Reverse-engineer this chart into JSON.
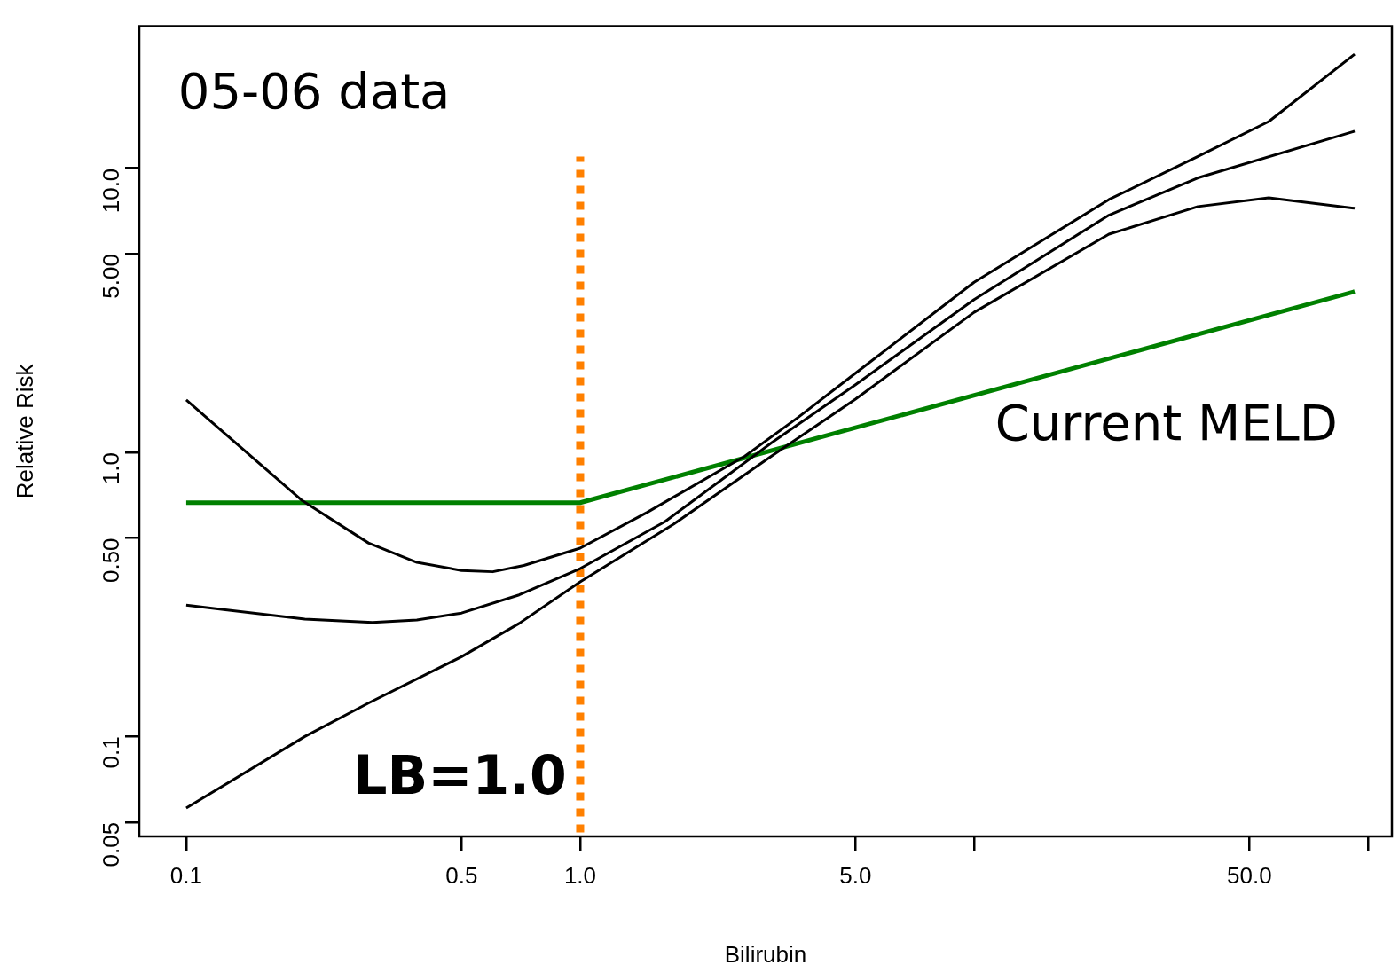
{
  "chart_data": {
    "type": "line",
    "xlabel": "Bilirubin",
    "ylabel": "Relative Risk",
    "log": "xy",
    "grid": false,
    "legend": false,
    "marker": "none",
    "xlim": [
      0.076,
      115
    ],
    "ylim": [
      0.0445,
      31.6
    ],
    "xticks": [
      0.1,
      0.5,
      {
        "value": 1,
        "label": "1.0"
      },
      {
        "value": 5,
        "label": "5.0"
      },
      {
        "value": 10,
        "label": null
      },
      {
        "value": 50,
        "label": "50.0"
      },
      {
        "value": 100,
        "label": null
      }
    ],
    "yticks": [
      0.05,
      0.1,
      {
        "value": 0.5,
        "label": "0.50"
      },
      {
        "value": 1,
        "label": "1.0"
      },
      {
        "value": 5,
        "label": "5.00"
      },
      {
        "value": 10,
        "label": "10.0"
      }
    ],
    "series": [
      {
        "color": "#000000",
        "x": [
          0.1,
          0.196,
          0.29,
          0.385,
          0.5,
          0.6,
          0.72,
          1.0,
          1.48,
          2.62,
          3.58,
          5,
          10,
          22,
          37,
          56,
          92.5
        ],
        "values": [
          1.53,
          0.68,
          0.48,
          0.41,
          0.384,
          0.38,
          0.4,
          0.46,
          0.615,
          0.97,
          1.33,
          1.9,
          3.97,
          7.76,
          11.0,
          14.6,
          25.2
        ]
      },
      {
        "color": "#000000",
        "x": [
          0.1,
          0.2,
          0.297,
          0.385,
          0.5,
          0.7,
          1.0,
          1.64,
          3.06,
          5,
          10,
          22,
          37,
          92.5
        ],
        "values": [
          0.29,
          0.259,
          0.252,
          0.257,
          0.272,
          0.315,
          0.39,
          0.57,
          1.08,
          1.73,
          3.45,
          6.84,
          9.25,
          13.5
        ]
      },
      {
        "color": "#000000",
        "x": [
          0.1,
          0.2,
          0.29,
          0.5,
          0.7,
          1.0,
          1.73,
          3.06,
          5,
          10,
          22,
          37,
          56,
          92.5
        ],
        "values": [
          0.056,
          0.1,
          0.131,
          0.191,
          0.25,
          0.35,
          0.56,
          0.97,
          1.54,
          3.11,
          5.86,
          7.33,
          7.87,
          7.23
        ]
      },
      {
        "color": "#008000",
        "x": [
          0.1,
          1.0,
          92.5
        ],
        "values": [
          0.665,
          0.665,
          3.68
        ]
      },
      {
        "color": "#ff8000",
        "line_style": "dotted",
        "x": [
          1,
          1
        ],
        "values": [
          0.046,
          11
        ]
      }
    ],
    "annotations": [
      "05-06 data",
      "Current MELD",
      "LB=1.0"
    ]
  }
}
